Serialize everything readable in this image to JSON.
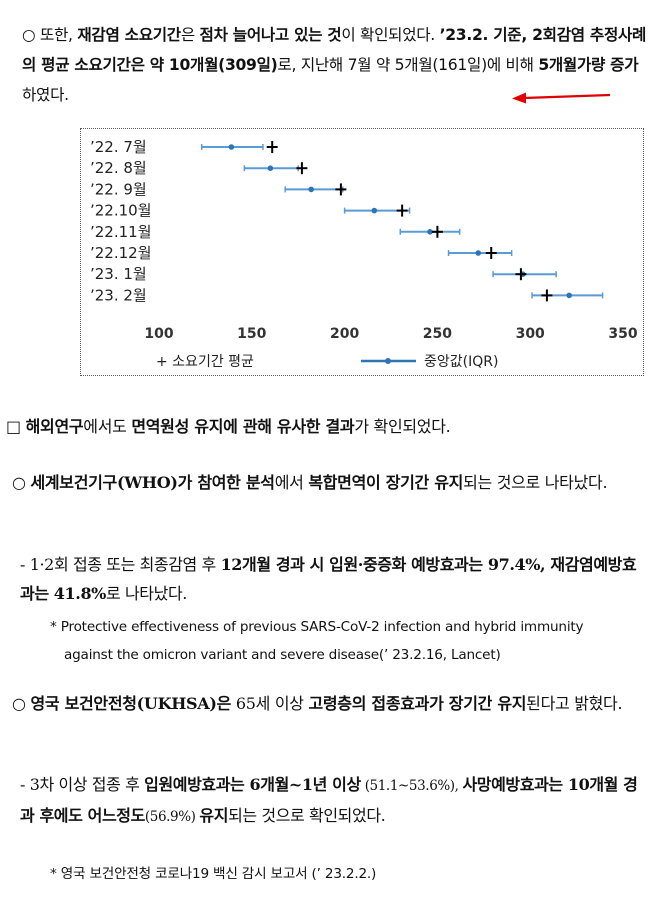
{
  "para1": {
    "bullet": "○",
    "s1": " 또한, ",
    "s2": "재감염 소요기간",
    "s3": "은 ",
    "s4": "점차 늘어나고 있는 것",
    "s5": "이 확인되었다. ",
    "s6": "’23.2. 기준, 2회감염 추정사례의 평균 소요기간은 약 10개월(309일)",
    "s7": "로, 지난해 7월 약 5개월(161일)에 비해 ",
    "s8": "5개월가량 증가",
    "s9": "하였다."
  },
  "chart_data": {
    "type": "scatter",
    "categories": [
      "’22. 7월",
      "’22. 8월",
      "’22. 9월",
      "’22.10월",
      "’22.11월",
      "’22.12월",
      "’23. 1월",
      "’23. 2월"
    ],
    "median": [
      139,
      160,
      182,
      216,
      246,
      272,
      296,
      321
    ],
    "iqr_low": [
      123,
      146,
      168,
      200,
      230,
      256,
      280,
      301
    ],
    "iqr_high": [
      156,
      175,
      199,
      235,
      262,
      290,
      314,
      339
    ],
    "mean": [
      161,
      177,
      198,
      231,
      250,
      279,
      295,
      309
    ],
    "xticks": [
      100,
      150,
      200,
      250,
      300,
      350
    ],
    "xlim": [
      100,
      350
    ],
    "legend_mean": "+ 소요기간 평균",
    "legend_median": "중앙값(IQR)",
    "colors": {
      "median": "#2e75b6",
      "iqr": "#5b9bd5",
      "mean": "#000000"
    }
  },
  "heading": {
    "box": "□ ",
    "s1": "해외연구",
    "s2": "에서도 ",
    "s3": "면역원성 유지에 관해 유사한 결과",
    "s4": "가 확인되었다."
  },
  "para2": {
    "bullet": "○ ",
    "s1": "세계보건기구(WHO)가 참여한 분석",
    "s2": "에서 ",
    "s3": "복합면역이 장기간 유지",
    "s4": "되는 것으로 나타났다."
  },
  "para3": {
    "s1": "- 1·2회 접종 또는 최종감염 후 ",
    "s2": "12개월 경과 시 입원·중증화 예방효과는 97.4%, 재감염예방효과는 41.8%",
    "s3": "로 나타났다."
  },
  "footnote1": {
    "line1": "* Protective effectiveness of previous SARS-CoV-2 infection and hybrid immunity",
    "line2": "against the omicron variant and severe disease(’ 23.2.16, Lancet)"
  },
  "para4": {
    "bullet": "○ ",
    "s1": "영국 보건안전청(UKHSA)은",
    "s2": " 65세 이상 ",
    "s3": "고령층의 접종효과가 장기간 유지",
    "s4": "된다고 밝혔다."
  },
  "para5": {
    "s1": "- 3차 이상 접종 후 ",
    "s2": "입원예방효과는 6개월~1년 이상",
    "s3": " (51.1~53.6%), ",
    "s4": "사망예방효과는 10개월 경과 후에도 어느정도",
    "s5": "(56.9%) ",
    "s6": "유지",
    "s7": "되는 것으로 확인되었다."
  },
  "footnote2": {
    "text": "* 영국 보건안전청 코로나19 백신 감시 보고서 (’ 23.2.2.)"
  }
}
